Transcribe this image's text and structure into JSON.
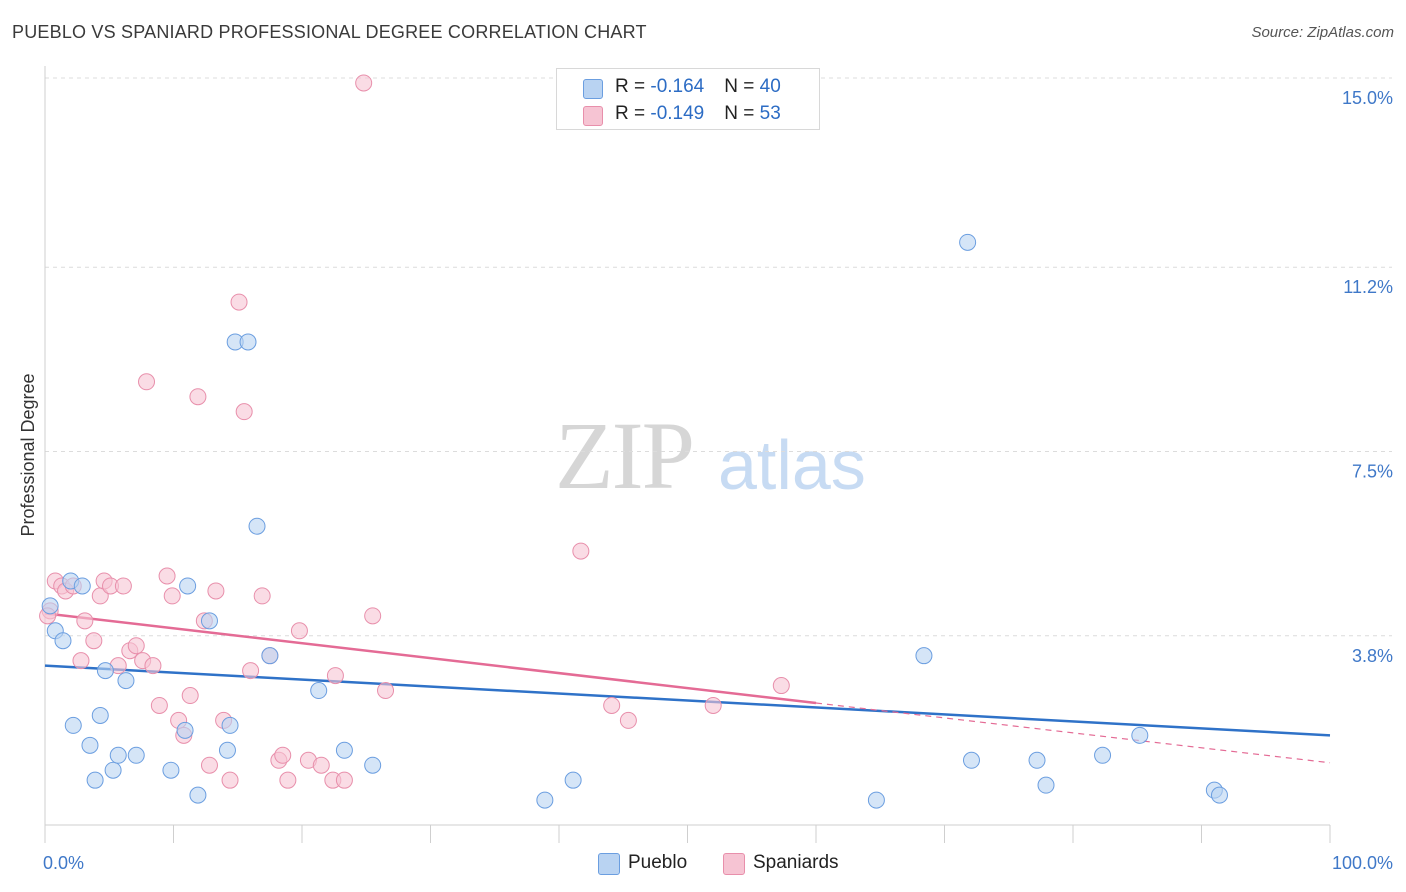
{
  "title": "PUEBLO VS SPANIARD PROFESSIONAL DEGREE CORRELATION CHART",
  "source": "Source: ZipAtlas.com",
  "watermark": {
    "zip": "ZIP",
    "atlas": "atlas"
  },
  "colors": {
    "pueblo_fill": "#b9d3f2",
    "pueblo_stroke": "#6b9ee0",
    "pueblo_line": "#2f72c8",
    "spaniard_fill": "#f6c4d3",
    "spaniard_stroke": "#e88fab",
    "spaniard_line": "#e46b95",
    "axis_label": "#3f78c8",
    "grid": "#dcdcdc"
  },
  "legend_stats": [
    {
      "r_label": "R = ",
      "r_value": "-0.164",
      "n_label": "N = ",
      "n_value": "40"
    },
    {
      "r_label": "R = ",
      "r_value": "-0.149",
      "n_label": "N = ",
      "n_value": "53"
    }
  ],
  "chart_data": {
    "type": "scatter",
    "title": "PUEBLO VS SPANIARD PROFESSIONAL DEGREE CORRELATION CHART",
    "xlabel": "",
    "ylabel": "Professional Degree",
    "xlim": [
      0,
      100
    ],
    "ylim": [
      0,
      15.0
    ],
    "x_tick_labels": {
      "min": "0.0%",
      "max": "100.0%"
    },
    "y_ticks": [
      3.8,
      7.5,
      11.2,
      15.0
    ],
    "y_tick_labels": [
      "3.8%",
      "7.5%",
      "11.2%",
      "15.0%"
    ],
    "grid": true,
    "legend_position": "bottom",
    "series": [
      {
        "name": "Pueblo",
        "r": -0.164,
        "n": 40,
        "trend": {
          "x": [
            0,
            100
          ],
          "y": [
            3.2,
            1.8
          ]
        },
        "points": [
          {
            "x": 0.4,
            "y": 4.4
          },
          {
            "x": 0.8,
            "y": 3.9
          },
          {
            "x": 1.4,
            "y": 3.7
          },
          {
            "x": 2.0,
            "y": 4.9
          },
          {
            "x": 2.2,
            "y": 2.0
          },
          {
            "x": 2.9,
            "y": 4.8
          },
          {
            "x": 3.5,
            "y": 1.6
          },
          {
            "x": 3.9,
            "y": 0.9
          },
          {
            "x": 4.3,
            "y": 2.2
          },
          {
            "x": 4.7,
            "y": 3.1
          },
          {
            "x": 5.3,
            "y": 1.1
          },
          {
            "x": 5.7,
            "y": 1.4
          },
          {
            "x": 6.3,
            "y": 2.9
          },
          {
            "x": 7.1,
            "y": 1.4
          },
          {
            "x": 9.8,
            "y": 1.1
          },
          {
            "x": 11.1,
            "y": 4.8
          },
          {
            "x": 10.9,
            "y": 1.9
          },
          {
            "x": 11.9,
            "y": 0.6
          },
          {
            "x": 12.8,
            "y": 4.1
          },
          {
            "x": 14.2,
            "y": 1.5
          },
          {
            "x": 14.4,
            "y": 2.0
          },
          {
            "x": 14.8,
            "y": 9.7
          },
          {
            "x": 15.8,
            "y": 9.7
          },
          {
            "x": 16.5,
            "y": 6.0
          },
          {
            "x": 17.5,
            "y": 3.4
          },
          {
            "x": 21.3,
            "y": 2.7
          },
          {
            "x": 23.3,
            "y": 1.5
          },
          {
            "x": 25.5,
            "y": 1.2
          },
          {
            "x": 38.9,
            "y": 0.5
          },
          {
            "x": 41.1,
            "y": 0.9
          },
          {
            "x": 64.7,
            "y": 0.5
          },
          {
            "x": 68.4,
            "y": 3.4
          },
          {
            "x": 71.8,
            "y": 11.7
          },
          {
            "x": 72.1,
            "y": 1.3
          },
          {
            "x": 77.2,
            "y": 1.3
          },
          {
            "x": 77.9,
            "y": 0.8
          },
          {
            "x": 82.3,
            "y": 1.4
          },
          {
            "x": 85.2,
            "y": 1.8
          },
          {
            "x": 91.0,
            "y": 0.7
          },
          {
            "x": 91.4,
            "y": 0.6
          }
        ]
      },
      {
        "name": "Spaniards",
        "r": -0.149,
        "n": 53,
        "trend": {
          "x": [
            0,
            60
          ],
          "y": [
            4.25,
            2.45
          ]
        },
        "trend_dashed": {
          "x": [
            60,
            100
          ],
          "y": [
            2.45,
            1.25
          ]
        },
        "points": [
          {
            "x": 0.4,
            "y": 4.3
          },
          {
            "x": 0.8,
            "y": 4.9
          },
          {
            "x": 1.3,
            "y": 4.8
          },
          {
            "x": 1.6,
            "y": 4.7
          },
          {
            "x": 2.2,
            "y": 4.8
          },
          {
            "x": 2.8,
            "y": 3.3
          },
          {
            "x": 3.1,
            "y": 4.1
          },
          {
            "x": 3.8,
            "y": 3.7
          },
          {
            "x": 4.3,
            "y": 4.6
          },
          {
            "x": 4.6,
            "y": 4.9
          },
          {
            "x": 5.1,
            "y": 4.8
          },
          {
            "x": 5.7,
            "y": 3.2
          },
          {
            "x": 6.1,
            "y": 4.8
          },
          {
            "x": 6.6,
            "y": 3.5
          },
          {
            "x": 7.1,
            "y": 3.6
          },
          {
            "x": 7.6,
            "y": 3.3
          },
          {
            "x": 7.9,
            "y": 8.9
          },
          {
            "x": 8.4,
            "y": 3.2
          },
          {
            "x": 8.9,
            "y": 2.4
          },
          {
            "x": 9.5,
            "y": 5.0
          },
          {
            "x": 9.9,
            "y": 4.6
          },
          {
            "x": 10.4,
            "y": 2.1
          },
          {
            "x": 10.8,
            "y": 1.8
          },
          {
            "x": 11.3,
            "y": 2.6
          },
          {
            "x": 11.9,
            "y": 8.6
          },
          {
            "x": 12.4,
            "y": 4.1
          },
          {
            "x": 12.8,
            "y": 1.2
          },
          {
            "x": 13.3,
            "y": 4.7
          },
          {
            "x": 13.9,
            "y": 2.1
          },
          {
            "x": 14.4,
            "y": 0.9
          },
          {
            "x": 15.1,
            "y": 10.5
          },
          {
            "x": 15.5,
            "y": 8.3
          },
          {
            "x": 16.0,
            "y": 3.1
          },
          {
            "x": 16.9,
            "y": 4.6
          },
          {
            "x": 17.5,
            "y": 3.4
          },
          {
            "x": 18.2,
            "y": 1.3
          },
          {
            "x": 18.5,
            "y": 1.4
          },
          {
            "x": 18.9,
            "y": 0.9
          },
          {
            "x": 19.8,
            "y": 3.9
          },
          {
            "x": 20.5,
            "y": 1.3
          },
          {
            "x": 21.5,
            "y": 1.2
          },
          {
            "x": 22.4,
            "y": 0.9
          },
          {
            "x": 22.6,
            "y": 3.0
          },
          {
            "x": 23.3,
            "y": 0.9
          },
          {
            "x": 24.8,
            "y": 14.9
          },
          {
            "x": 25.5,
            "y": 4.2
          },
          {
            "x": 26.5,
            "y": 2.7
          },
          {
            "x": 41.7,
            "y": 5.5
          },
          {
            "x": 44.1,
            "y": 2.4
          },
          {
            "x": 45.4,
            "y": 2.1
          },
          {
            "x": 52.0,
            "y": 2.4
          },
          {
            "x": 57.3,
            "y": 2.8
          },
          {
            "x": 0.2,
            "y": 4.2
          }
        ]
      }
    ]
  },
  "bottom_legend": [
    "Pueblo",
    "Spaniards"
  ]
}
